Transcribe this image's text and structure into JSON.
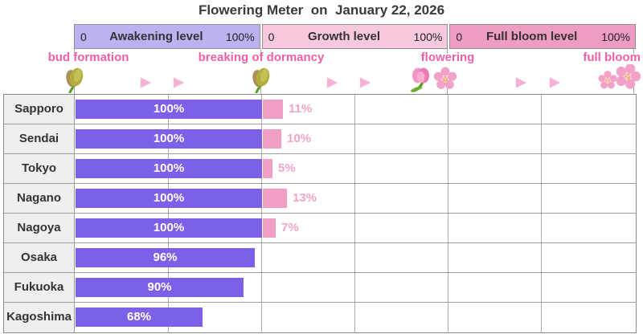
{
  "title": "Flowering Meter  on  January 22, 2026",
  "legend": {
    "segments": [
      {
        "name": "Awakening level",
        "min": "0",
        "max": "100%",
        "color": "#beb1f1"
      },
      {
        "name": "Growth level",
        "min": "0",
        "max": "100%",
        "color": "#f8c9de"
      },
      {
        "name": "Full bloom level",
        "min": "0",
        "max": "100%",
        "color": "#ef9cc2"
      }
    ]
  },
  "stages": [
    {
      "label": "bud formation",
      "icon": "bud-icon"
    },
    {
      "label": "breaking of dormancy",
      "icon": "bud-icon"
    },
    {
      "label": "flowering",
      "icon": "flowering-icon"
    },
    {
      "label": "full bloom",
      "icon": "full-bloom-icon"
    }
  ],
  "chart_data": {
    "type": "bar",
    "orientation": "horizontal",
    "title": "Flowering Meter  on  January 22, 2026",
    "categories": [
      "Sapporo",
      "Sendai",
      "Tokyo",
      "Nagano",
      "Nagoya",
      "Osaka",
      "Fukuoka",
      "Kagoshima"
    ],
    "series": [
      {
        "name": "Awakening level",
        "unit": "%",
        "values": [
          100,
          100,
          100,
          100,
          100,
          96,
          90,
          68
        ]
      },
      {
        "name": "Growth level",
        "unit": "%",
        "values": [
          11,
          10,
          5,
          13,
          7,
          null,
          null,
          null
        ]
      },
      {
        "name": "Full bloom level",
        "unit": "%",
        "values": [
          null,
          null,
          null,
          null,
          null,
          null,
          null,
          null
        ]
      }
    ],
    "xlim": [
      0,
      100
    ],
    "grid": true,
    "legend_position": "top"
  },
  "colors": {
    "awakening_bar": "#7d60e8",
    "growth_bar": "#f19fc5",
    "growth_label": "#f2a3c9",
    "stage_label": "#ee5fa8",
    "legend_awakening": "#beb1f1",
    "legend_growth": "#f8c9de",
    "legend_full_bloom": "#ef9cc2",
    "title_text": "#3a3a3a"
  }
}
